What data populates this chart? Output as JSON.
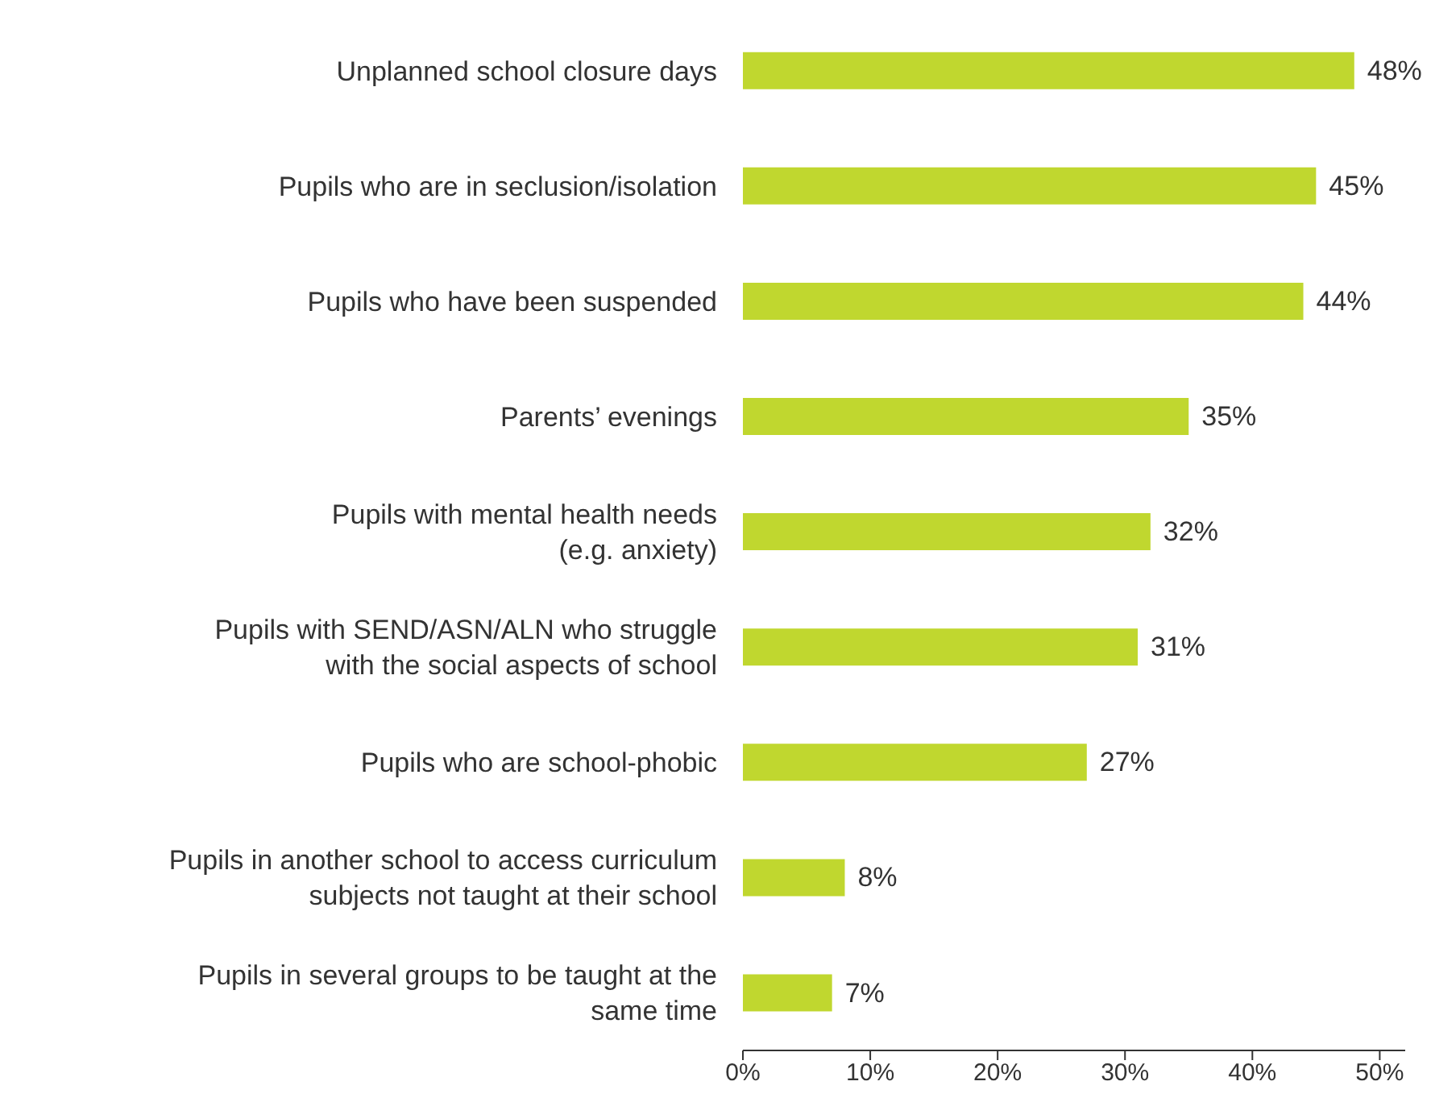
{
  "chart_data": {
    "type": "bar",
    "orientation": "horizontal",
    "categories": [
      "Unplanned school closure days",
      "Pupils who are in seclusion/isolation",
      "Pupils who have been suspended",
      "Parents’ evenings",
      "Pupils with mental health needs\n(e.g. anxiety)",
      "Pupils with SEND/ASN/ALN who struggle\nwith the social aspects of school",
      "Pupils who are school-phobic",
      "Pupils in another school to access curriculum\nsubjects not taught at their school",
      "Pupils in several groups to be taught at the\nsame time"
    ],
    "values": [
      48,
      45,
      44,
      35,
      32,
      31,
      27,
      8,
      7
    ],
    "value_labels": [
      "48%",
      "45%",
      "44%",
      "35%",
      "32%",
      "31%",
      "27%",
      "8%",
      "7%"
    ],
    "color": "#c0d72f",
    "xlim": [
      0,
      52
    ],
    "xticks": [
      {
        "value": 0,
        "label": "0%"
      },
      {
        "value": 10,
        "label": "10%"
      },
      {
        "value": 20,
        "label": "20%"
      },
      {
        "value": 30,
        "label": "30%"
      },
      {
        "value": 40,
        "label": "40%"
      },
      {
        "value": 50,
        "label": "50%"
      }
    ],
    "grid": false,
    "legend": false
  }
}
